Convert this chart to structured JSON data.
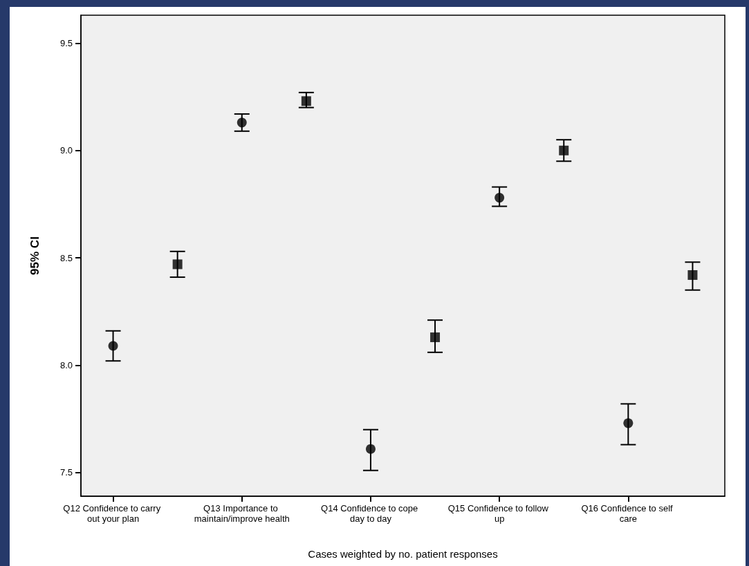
{
  "chart_data": {
    "type": "scatter",
    "xlabel": "Cases weighted by no. patient responses",
    "ylabel": "95% CI",
    "categories": [
      "Q12 Confidence to carry out your plan",
      null,
      "Q13 Importance to maintain/improve health",
      null,
      "Q14 Confidence to cope day to day",
      null,
      "Q15 Confidence to follow up",
      null,
      "Q16 Confidence to self care",
      null
    ],
    "ylim": [
      7.39,
      9.63
    ],
    "yticks": [
      7.5,
      {
        "value": 8,
        "label": "8.0"
      },
      8.5,
      {
        "value": 9,
        "label": "9.0"
      },
      9.5
    ],
    "series": [
      {
        "color": "#000000",
        "marker": "circle",
        "values": [
          8.09,
          null,
          9.13,
          null,
          7.61,
          null,
          8.78,
          null,
          7.73,
          null
        ],
        "errors": [
          [
            8.02,
            8.16
          ],
          null,
          [
            9.09,
            9.17
          ],
          null,
          [
            7.51,
            7.7
          ],
          null,
          [
            8.74,
            8.83
          ],
          null,
          [
            7.63,
            7.82
          ],
          null
        ]
      },
      {
        "color": "#000000",
        "marker": "square",
        "values": [
          null,
          8.47,
          null,
          9.23,
          null,
          8.13,
          null,
          9.0,
          null,
          8.42
        ],
        "errors": [
          null,
          [
            8.41,
            8.53
          ],
          null,
          [
            9.2,
            9.27
          ],
          null,
          [
            8.06,
            8.21
          ],
          null,
          [
            8.95,
            9.05
          ],
          null,
          [
            8.35,
            8.48
          ]
        ]
      }
    ]
  }
}
